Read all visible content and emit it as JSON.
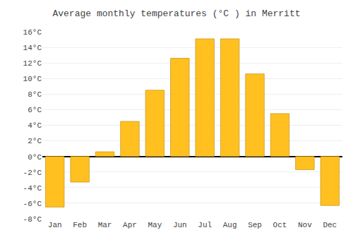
{
  "chart_data": {
    "type": "bar",
    "title": "Average monthly temperatures (°C ) in Merritt",
    "categories": [
      "Jan",
      "Feb",
      "Mar",
      "Apr",
      "May",
      "Jun",
      "Jul",
      "Aug",
      "Sep",
      "Oct",
      "Nov",
      "Dec"
    ],
    "values": [
      -6.5,
      -3.3,
      0.6,
      4.5,
      8.5,
      12.6,
      15.1,
      15.1,
      10.6,
      5.5,
      -1.7,
      -6.3
    ],
    "color": "#FFC020",
    "ylim": [
      -8,
      16
    ],
    "yticks": [
      {
        "value": -8,
        "label": "-8°C"
      },
      {
        "value": -6,
        "label": "-6°C"
      },
      {
        "value": -4,
        "label": "-4°C"
      },
      {
        "value": -2,
        "label": "-2°C"
      },
      {
        "value": 0,
        "label": "0°C"
      },
      {
        "value": 2,
        "label": "2°C"
      },
      {
        "value": 4,
        "label": "4°C"
      },
      {
        "value": 6,
        "label": "6°C"
      },
      {
        "value": 8,
        "label": "8°C"
      },
      {
        "value": 10,
        "label": "10°C"
      },
      {
        "value": 12,
        "label": "12°C"
      },
      {
        "value": 14,
        "label": "14°C"
      },
      {
        "value": 16,
        "label": "16°C"
      }
    ],
    "grid": true
  }
}
